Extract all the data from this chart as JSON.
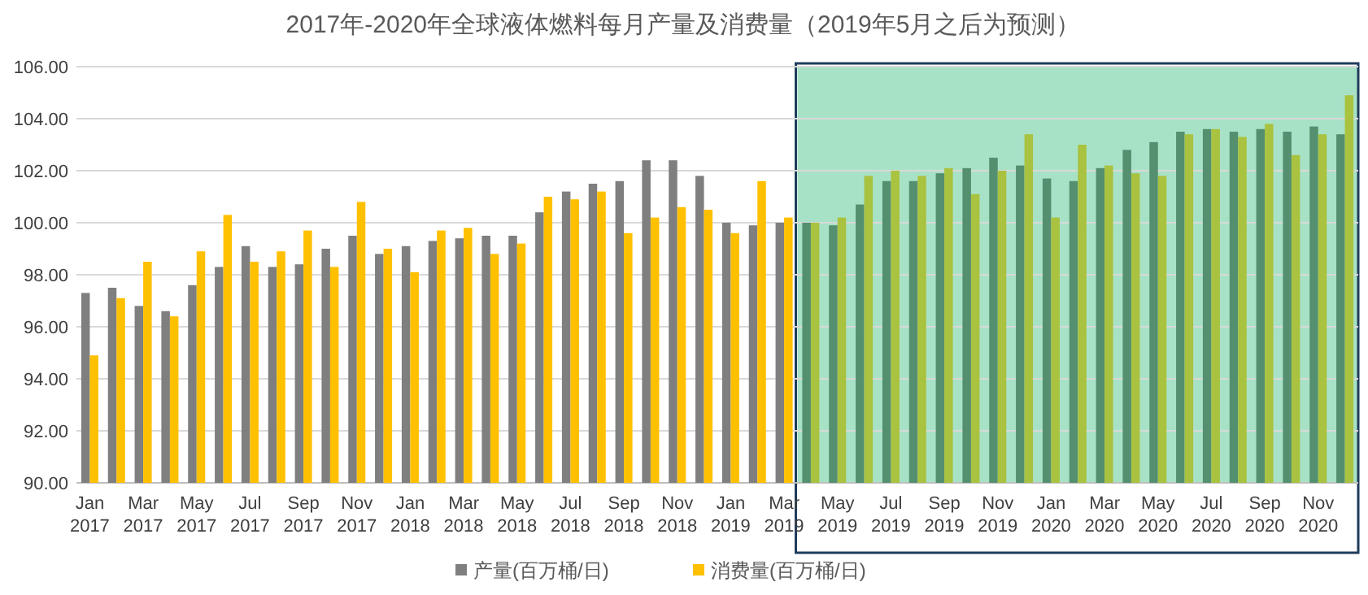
{
  "chart_data": {
    "type": "bar",
    "title": "2017年-2020年全球液体燃料每月产量及消费量（2019年5月之后为预测）",
    "x": [
      "2017-01",
      "2017-02",
      "2017-03",
      "2017-04",
      "2017-05",
      "2017-06",
      "2017-07",
      "2017-08",
      "2017-09",
      "2017-10",
      "2017-11",
      "2017-12",
      "2018-01",
      "2018-02",
      "2018-03",
      "2018-04",
      "2018-05",
      "2018-06",
      "2018-07",
      "2018-08",
      "2018-09",
      "2018-10",
      "2018-11",
      "2018-12",
      "2019-01",
      "2019-02",
      "2019-03",
      "2019-04",
      "2019-05",
      "2019-06",
      "2019-07",
      "2019-08",
      "2019-09",
      "2019-10",
      "2019-11",
      "2019-12",
      "2020-01",
      "2020-02",
      "2020-03",
      "2020-04",
      "2020-05",
      "2020-06",
      "2020-07",
      "2020-08",
      "2020-09",
      "2020-10",
      "2020-11",
      "2020-12"
    ],
    "xlim": [
      "2016-12-16",
      "2020-12-16"
    ],
    "xticks": [
      {
        "value": "2017-01",
        "label": "Jan 2017"
      },
      {
        "value": "2017-03",
        "label": "Mar 2017"
      },
      {
        "value": "2017-05",
        "label": "May 2017"
      },
      {
        "value": "2017-07",
        "label": "Jul 2017"
      },
      {
        "value": "2017-09",
        "label": "Sep 2017"
      },
      {
        "value": "2017-11",
        "label": "Nov 2017"
      },
      {
        "value": "2018-01",
        "label": "Jan 2018"
      },
      {
        "value": "2018-03",
        "label": "Mar 2018"
      },
      {
        "value": "2018-05",
        "label": "May 2018"
      },
      {
        "value": "2018-07",
        "label": "Jul 2018"
      },
      {
        "value": "2018-09",
        "label": "Sep 2018"
      },
      {
        "value": "2018-11",
        "label": "Nov 2018"
      },
      {
        "value": "2019-01",
        "label": "Jan 2019"
      },
      {
        "value": "2019-03",
        "label": "Mar 2019"
      },
      {
        "value": "2019-05",
        "label": "May 2019"
      },
      {
        "value": "2019-07",
        "label": "Jul 2019"
      },
      {
        "value": "2019-09",
        "label": "Sep 2019"
      },
      {
        "value": "2019-11",
        "label": "Nov 2019"
      },
      {
        "value": "2020-01",
        "label": "Jan 2020"
      },
      {
        "value": "2020-03",
        "label": "Mar 2020"
      },
      {
        "value": "2020-05",
        "label": "May 2020"
      },
      {
        "value": "2020-07",
        "label": "Jul 2020"
      },
      {
        "value": "2020-09",
        "label": "Sep 2020"
      },
      {
        "value": "2020-11",
        "label": "Nov 2020"
      }
    ],
    "ylim": [
      90,
      106
    ],
    "yticks": [
      {
        "value": 90,
        "label": "90.00"
      },
      {
        "value": 92,
        "label": "92.00"
      },
      {
        "value": 94,
        "label": "94.00"
      },
      {
        "value": 96,
        "label": "96.00"
      },
      {
        "value": 98,
        "label": "98.00"
      },
      {
        "value": 100,
        "label": "100.00"
      },
      {
        "value": 102,
        "label": "102.00"
      },
      {
        "value": 104,
        "label": "104.00"
      },
      {
        "value": 106,
        "label": "106.00"
      }
    ],
    "grid": "y",
    "legend": "bottom",
    "bands": [
      {
        "axis": "x",
        "from": "2019-03-16",
        "to": "2020-12-16",
        "label": null,
        "color": "#a8e2c6"
      }
    ],
    "series": [
      {
        "name": "产量(百万桶/日)",
        "color": "#7f7f7f",
        "colors": [
          "#7f7f7f",
          "#7f7f7f",
          "#7f7f7f",
          "#7f7f7f",
          "#7f7f7f",
          "#7f7f7f",
          "#7f7f7f",
          "#7f7f7f",
          "#7f7f7f",
          "#7f7f7f",
          "#7f7f7f",
          "#7f7f7f",
          "#7f7f7f",
          "#7f7f7f",
          "#7f7f7f",
          "#7f7f7f",
          "#7f7f7f",
          "#7f7f7f",
          "#7f7f7f",
          "#7f7f7f",
          "#7f7f7f",
          "#7f7f7f",
          "#7f7f7f",
          "#7f7f7f",
          "#7f7f7f",
          "#7f7f7f",
          "#7f7f7f",
          "#548f6f",
          "#548f6f",
          "#548f6f",
          "#548f6f",
          "#548f6f",
          "#548f6f",
          "#548f6f",
          "#548f6f",
          "#548f6f",
          "#548f6f",
          "#548f6f",
          "#548f6f",
          "#548f6f",
          "#548f6f",
          "#548f6f",
          "#548f6f",
          "#548f6f",
          "#548f6f",
          "#548f6f",
          "#548f6f",
          "#548f6f"
        ],
        "values": [
          97.3,
          97.5,
          96.8,
          96.6,
          97.6,
          98.3,
          99.1,
          98.3,
          98.4,
          99.0,
          99.5,
          98.8,
          99.1,
          99.3,
          99.4,
          99.5,
          99.5,
          100.4,
          101.2,
          101.5,
          101.6,
          102.4,
          102.4,
          101.8,
          100.0,
          99.9,
          100.0,
          100.0,
          99.9,
          100.7,
          101.6,
          101.6,
          101.9,
          102.1,
          102.5,
          102.2,
          101.7,
          101.6,
          102.1,
          102.8,
          103.1,
          103.5,
          103.6,
          103.5,
          103.6,
          103.5,
          103.7,
          103.4
        ]
      },
      {
        "name": "消费量(百万桶/日)",
        "color": "#ffc000",
        "colors": [
          "#ffc000",
          "#ffc000",
          "#ffc000",
          "#ffc000",
          "#ffc000",
          "#ffc000",
          "#ffc000",
          "#ffc000",
          "#ffc000",
          "#ffc000",
          "#ffc000",
          "#ffc000",
          "#ffc000",
          "#ffc000",
          "#ffc000",
          "#ffc000",
          "#ffc000",
          "#ffc000",
          "#ffc000",
          "#ffc000",
          "#ffc000",
          "#ffc000",
          "#ffc000",
          "#ffc000",
          "#ffc000",
          "#ffc000",
          "#ffc000",
          "#a9c23f",
          "#a9c23f",
          "#a9c23f",
          "#a9c23f",
          "#a9c23f",
          "#a9c23f",
          "#a9c23f",
          "#a9c23f",
          "#a9c23f",
          "#a9c23f",
          "#a9c23f",
          "#a9c23f",
          "#a9c23f",
          "#a9c23f",
          "#a9c23f",
          "#a9c23f",
          "#a9c23f",
          "#a9c23f",
          "#a9c23f",
          "#a9c23f",
          "#a9c23f"
        ],
        "values": [
          94.9,
          97.1,
          98.5,
          96.4,
          98.9,
          100.3,
          98.5,
          98.9,
          99.7,
          98.3,
          100.8,
          99.0,
          98.1,
          99.7,
          99.8,
          98.8,
          99.2,
          101.0,
          100.9,
          101.2,
          99.6,
          100.2,
          100.6,
          100.5,
          99.6,
          101.6,
          100.2,
          100.0,
          100.2,
          101.8,
          102.0,
          101.8,
          102.1,
          101.1,
          102.0,
          103.4,
          100.2,
          103.0,
          102.2,
          101.9,
          101.8,
          103.4,
          103.6,
          103.3,
          103.8,
          102.6,
          103.4,
          104.9
        ]
      }
    ]
  }
}
